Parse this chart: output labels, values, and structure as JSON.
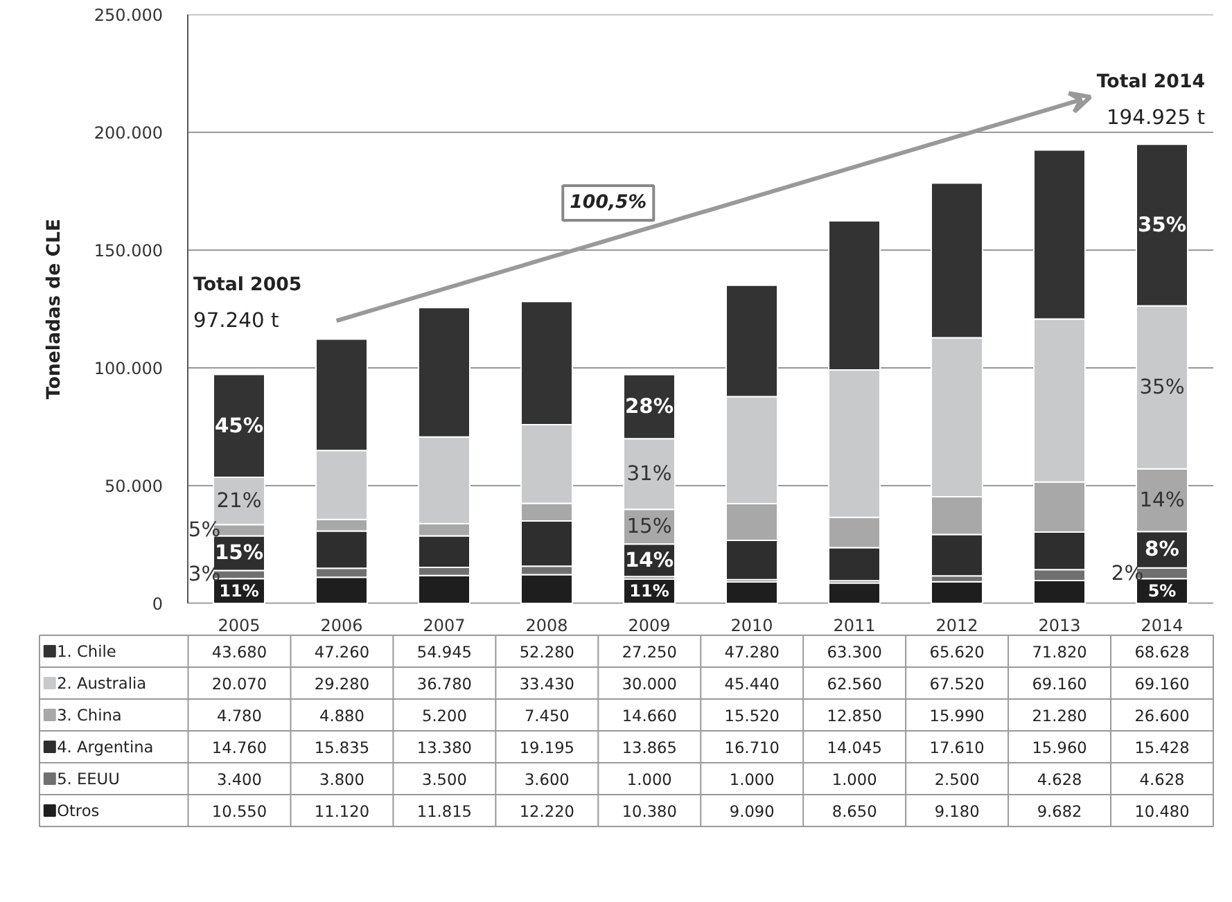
{
  "chart_data": {
    "type": "bar",
    "stacked": true,
    "ylabel": "Toneladas de CLE",
    "categories": [
      "2005",
      "2006",
      "2007",
      "2008",
      "2009",
      "2010",
      "2011",
      "2012",
      "2013",
      "2014"
    ],
    "series": [
      {
        "name": "Otros",
        "color": "#1e1e1e",
        "values": [
          10550,
          11120,
          11815,
          12220,
          10380,
          9090,
          8650,
          9180,
          9682,
          10480
        ],
        "value_labels": [
          "10.550",
          "11.120",
          "11.815",
          "12.220",
          "10.380",
          "9.090",
          "8.650",
          "9.180",
          "9.682",
          "10.480"
        ]
      },
      {
        "name": "5. EEUU",
        "color": "#707070",
        "values": [
          3400,
          3800,
          3500,
          3600,
          1000,
          1000,
          1000,
          2500,
          4628,
          4628
        ],
        "value_labels": [
          "3.400",
          "3.800",
          "3.500",
          "3.600",
          "1.000",
          "1.000",
          "1.000",
          "2.500",
          "4.628",
          "4.628"
        ]
      },
      {
        "name": "4. Argentina",
        "color": "#2e2e2e",
        "values": [
          14760,
          15835,
          13380,
          19195,
          13865,
          16710,
          14045,
          17610,
          15960,
          15428
        ],
        "value_labels": [
          "14.760",
          "15.835",
          "13.380",
          "19.195",
          "13.865",
          "16.710",
          "14.045",
          "17.610",
          "15.960",
          "15.428"
        ]
      },
      {
        "name": "3. China",
        "color": "#a8a8a8",
        "values": [
          4780,
          4880,
          5200,
          7450,
          14660,
          15520,
          12850,
          15990,
          21280,
          26600
        ],
        "value_labels": [
          "4.780",
          "4.880",
          "5.200",
          "7.450",
          "14.660",
          "15.520",
          "12.850",
          "15.990",
          "21.280",
          "26.600"
        ]
      },
      {
        "name": "2. Australia",
        "color": "#c8c9cb",
        "values": [
          20070,
          29280,
          36780,
          33430,
          30000,
          45440,
          62560,
          67520,
          69160,
          69160
        ],
        "value_labels": [
          "20.070",
          "29.280",
          "36.780",
          "33.430",
          "30.000",
          "45.440",
          "62.560",
          "67.520",
          "69.160",
          "69.160"
        ]
      },
      {
        "name": "1. Chile",
        "color": "#333333",
        "values": [
          43680,
          47260,
          54945,
          52280,
          27250,
          47280,
          63300,
          65620,
          71820,
          68628
        ],
        "value_labels": [
          "43.680",
          "47.260",
          "54.945",
          "52.280",
          "27.250",
          "47.280",
          "63.300",
          "65.620",
          "71.820",
          "68.628"
        ]
      }
    ],
    "ylim": [
      0,
      250000
    ],
    "yticks": [
      {
        "value": 0,
        "label": "0"
      },
      {
        "value": 50000,
        "label": "50.000"
      },
      {
        "value": 100000,
        "label": "100.000"
      },
      {
        "value": 150000,
        "label": "150.000"
      },
      {
        "value": 200000,
        "label": "200.000"
      },
      {
        "value": 250000,
        "label": "250.000"
      }
    ],
    "grid": "y",
    "legend": "bottom",
    "annotations": [
      "Total 2005",
      "97.240 t",
      "Total 2014",
      "194.925 t",
      "100,5%",
      "11%",
      "3%",
      "15%",
      "5%",
      "21%",
      "45%",
      "11%",
      "14%",
      "15%",
      "31%",
      "28%",
      "5%",
      "2%",
      "8%",
      "14%",
      "35%",
      "35%"
    ]
  }
}
